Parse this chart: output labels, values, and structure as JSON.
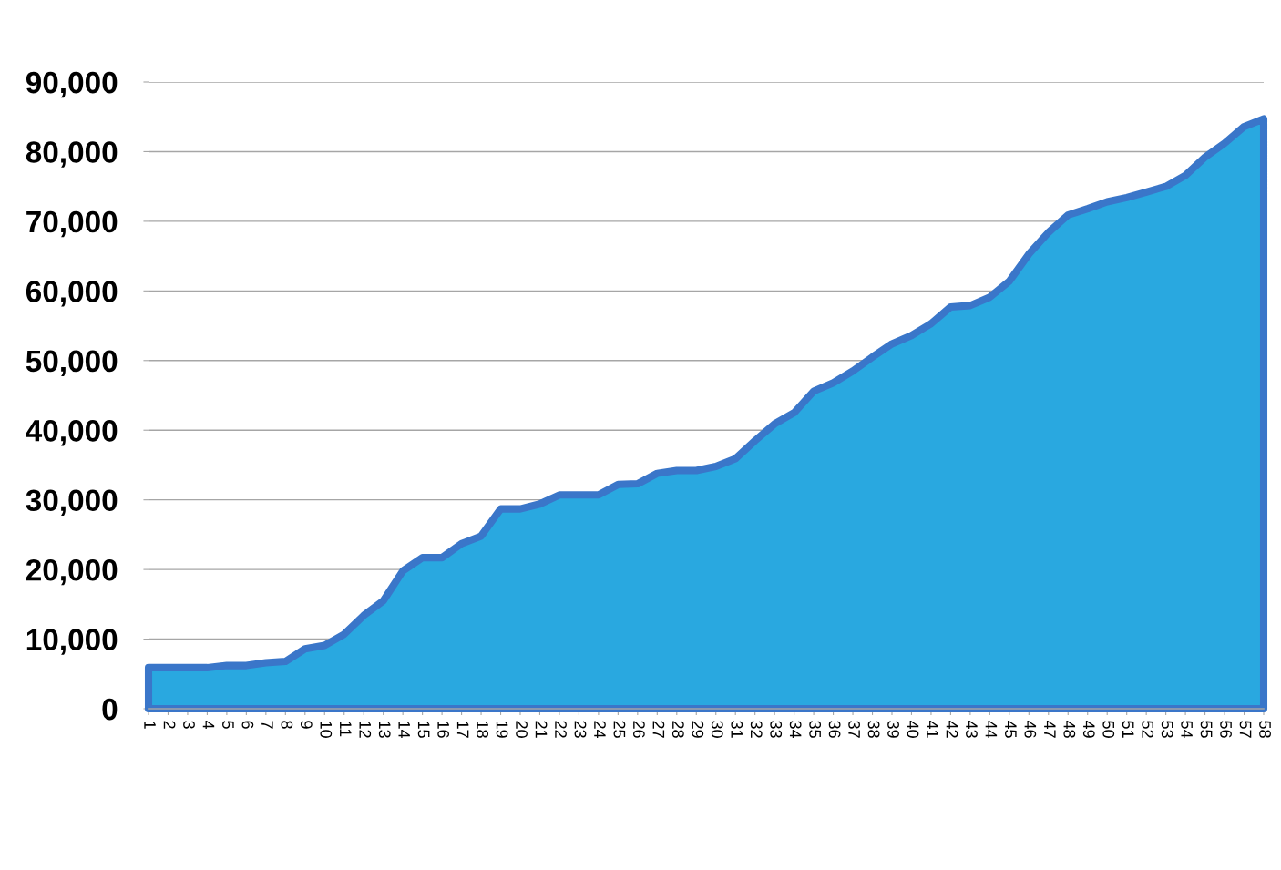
{
  "chart_data": {
    "type": "area",
    "categories": [
      "1",
      "2",
      "3",
      "4",
      "5",
      "6",
      "7",
      "8",
      "9",
      "10",
      "11",
      "12",
      "13",
      "14",
      "15",
      "16",
      "17",
      "18",
      "19",
      "20",
      "21",
      "22",
      "23",
      "24",
      "25",
      "26",
      "27",
      "28",
      "29",
      "30",
      "31",
      "32",
      "33",
      "34",
      "35",
      "36",
      "37",
      "38",
      "39",
      "40",
      "41",
      "42",
      "43",
      "44",
      "45",
      "46",
      "47",
      "48",
      "49",
      "50",
      "51",
      "52",
      "53",
      "54",
      "55",
      "56",
      "57",
      "58"
    ],
    "series": [
      {
        "color": "#29a8e0",
        "values": [
          5900,
          5900,
          5900,
          5900,
          6200,
          6200,
          6600,
          6800,
          8600,
          9100,
          10700,
          13400,
          15500,
          19800,
          21700,
          21700,
          23700,
          24800,
          28700,
          28700,
          29400,
          30700,
          30700,
          30700,
          32200,
          32300,
          33800,
          34200,
          34200,
          34800,
          35900,
          38500,
          40900,
          42500,
          45600,
          46800,
          48500,
          50500,
          52400,
          53600,
          55300,
          57700,
          57900,
          59100,
          61400,
          65300,
          68400,
          70900,
          71800,
          72800,
          73400,
          74200,
          75000,
          76600,
          79200,
          81200,
          83600,
          84700
        ]
      }
    ],
    "ylim": [
      0,
      90000
    ],
    "yticks": [
      0,
      {
        "value": 10000,
        "label": "10,000"
      },
      {
        "value": 20000,
        "label": "20,000"
      },
      {
        "value": 30000,
        "label": "30,000"
      },
      {
        "value": 40000,
        "label": "40,000"
      },
      {
        "value": 50000,
        "label": "50,000"
      },
      {
        "value": 60000,
        "label": "60,000"
      },
      {
        "value": 70000,
        "label": "70,000"
      },
      {
        "value": 80000,
        "label": "80,000"
      },
      {
        "value": 90000,
        "label": "90,000"
      }
    ],
    "grid": "y"
  }
}
